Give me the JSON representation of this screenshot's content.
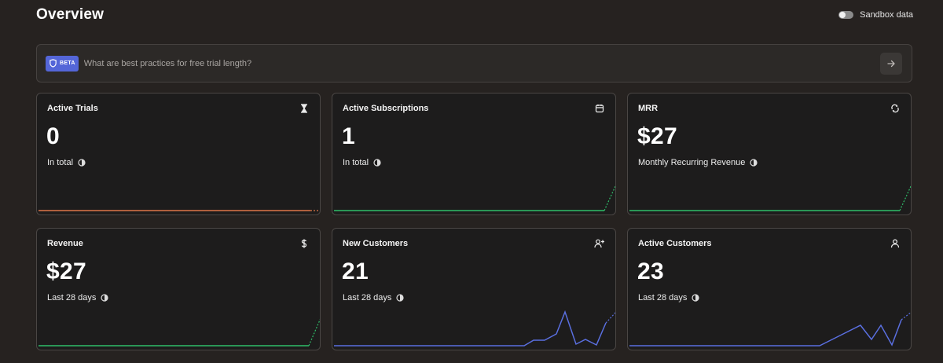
{
  "header": {
    "title": "Overview",
    "sandbox_label": "Sandbox data"
  },
  "ask": {
    "badge": "BETA",
    "placeholder": "What are best practices for free trial length?"
  },
  "colors": {
    "orange": "#e0774a",
    "green": "#2fbf6a",
    "blue": "#5a6fe0"
  },
  "cards": [
    {
      "title": "Active Trials",
      "icon": "hourglass-icon",
      "value": "0",
      "subtitle": "In total"
    },
    {
      "title": "Active Subscriptions",
      "icon": "calendar-icon",
      "value": "1",
      "subtitle": "In total"
    },
    {
      "title": "MRR",
      "icon": "refresh-icon",
      "value": "$27",
      "subtitle": "Monthly Recurring Revenue"
    },
    {
      "title": "Revenue",
      "icon": "dollar-icon",
      "value": "$27",
      "subtitle": "Last 28 days"
    },
    {
      "title": "New Customers",
      "icon": "user-plus-icon",
      "value": "21",
      "subtitle": "Last 28 days"
    },
    {
      "title": "Active Customers",
      "icon": "user-icon",
      "value": "23",
      "subtitle": "Last 28 days"
    }
  ]
}
